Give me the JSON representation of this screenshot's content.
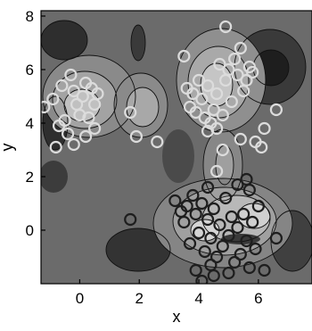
{
  "chart_data": {
    "type": "scatter",
    "subtype": "filled contour plot (grayscale) with two overlaid point classes drawn as hollow circles",
    "xlabel": "x",
    "ylabel": "y",
    "xlim": [
      -1.3,
      7.8
    ],
    "ylim": [
      -2.0,
      8.2
    ],
    "xticks": [
      0,
      2,
      4,
      6
    ],
    "yticks": [
      0,
      2,
      4,
      6,
      8
    ],
    "grid": false,
    "legend": "none",
    "colors": {
      "background": "#ffffff",
      "contour_dark": "#2a2a2a",
      "contour_mid": "#6e6e6e",
      "contour_light": "#bdbdbd",
      "contour_lines": "#111111",
      "light_points": "#dcdcdc",
      "dark_points": "#1e1e1e"
    },
    "series": [
      {
        "marker": "hollow-circle",
        "color": "#dcdcdc",
        "points": [
          [
            -1.2,
            4.6
          ],
          [
            -0.9,
            4.9
          ],
          [
            -0.6,
            5.4
          ],
          [
            -0.5,
            4.1
          ],
          [
            -0.3,
            5.8
          ],
          [
            -0.2,
            5.2
          ],
          [
            -0.1,
            4.7
          ],
          [
            0.0,
            4.3
          ],
          [
            0.1,
            5.0
          ],
          [
            0.2,
            5.5
          ],
          [
            0.3,
            4.2
          ],
          [
            0.4,
            5.3
          ],
          [
            0.5,
            4.7
          ],
          [
            0.6,
            5.1
          ],
          [
            -0.7,
            3.9
          ],
          [
            -0.4,
            3.6
          ],
          [
            -0.2,
            3.2
          ],
          [
            0.2,
            3.5
          ],
          [
            0.5,
            3.8
          ],
          [
            -0.8,
            3.1
          ],
          [
            1.7,
            4.4
          ],
          [
            1.9,
            3.5
          ],
          [
            2.6,
            3.3
          ],
          [
            3.5,
            6.5
          ],
          [
            3.6,
            5.3
          ],
          [
            3.7,
            4.6
          ],
          [
            3.8,
            5.1
          ],
          [
            3.9,
            4.4
          ],
          [
            4.0,
            5.6
          ],
          [
            4.1,
            4.9
          ],
          [
            4.2,
            4.2
          ],
          [
            4.3,
            5.4
          ],
          [
            4.4,
            4.0
          ],
          [
            4.5,
            4.5
          ],
          [
            4.6,
            5.1
          ],
          [
            4.7,
            6.2
          ],
          [
            4.8,
            4.3
          ],
          [
            4.9,
            5.6
          ],
          [
            5.0,
            6.0
          ],
          [
            5.1,
            4.8
          ],
          [
            5.2,
            6.4
          ],
          [
            5.3,
            5.8
          ],
          [
            5.4,
            6.8
          ],
          [
            5.5,
            5.2
          ],
          [
            5.6,
            5.6
          ],
          [
            5.7,
            6.1
          ],
          [
            5.8,
            5.9
          ],
          [
            4.9,
            7.6
          ],
          [
            4.6,
            3.8
          ],
          [
            4.3,
            3.7
          ],
          [
            6.2,
            3.8
          ],
          [
            6.6,
            4.5
          ],
          [
            5.9,
            3.3
          ],
          [
            6.1,
            3.1
          ],
          [
            5.4,
            3.4
          ],
          [
            4.8,
            3.0
          ],
          [
            4.6,
            2.2
          ]
        ]
      },
      {
        "marker": "hollow-circle",
        "color": "#1e1e1e",
        "points": [
          [
            1.7,
            0.4
          ],
          [
            3.2,
            1.1
          ],
          [
            3.4,
            0.7
          ],
          [
            3.5,
            0.3
          ],
          [
            3.6,
            0.9
          ],
          [
            3.7,
            -0.5
          ],
          [
            3.8,
            1.3
          ],
          [
            3.9,
            0.6
          ],
          [
            4.0,
            -0.1
          ],
          [
            4.1,
            1.0
          ],
          [
            4.2,
            -0.8
          ],
          [
            4.3,
            0.4
          ],
          [
            4.4,
            -0.3
          ],
          [
            4.5,
            0.8
          ],
          [
            4.6,
            -1.0
          ],
          [
            4.7,
            0.2
          ],
          [
            4.8,
            -0.6
          ],
          [
            4.9,
            1.2
          ],
          [
            5.0,
            -0.2
          ],
          [
            5.1,
            0.5
          ],
          [
            5.2,
            -1.2
          ],
          [
            5.3,
            0.1
          ],
          [
            5.4,
            -0.9
          ],
          [
            5.5,
            0.6
          ],
          [
            5.6,
            -0.4
          ],
          [
            5.7,
            1.5
          ],
          [
            5.8,
            0.3
          ],
          [
            5.9,
            -0.7
          ],
          [
            6.0,
            0.9
          ],
          [
            6.2,
            -1.5
          ],
          [
            4.1,
            -1.9
          ],
          [
            4.4,
            -1.3
          ],
          [
            5.0,
            -1.6
          ],
          [
            5.3,
            1.7
          ],
          [
            6.6,
            -0.3
          ],
          [
            3.9,
            -1.5
          ],
          [
            4.3,
            1.6
          ],
          [
            4.5,
            -1.7
          ],
          [
            5.6,
            1.9
          ],
          [
            5.7,
            -1.4
          ]
        ]
      }
    ]
  }
}
